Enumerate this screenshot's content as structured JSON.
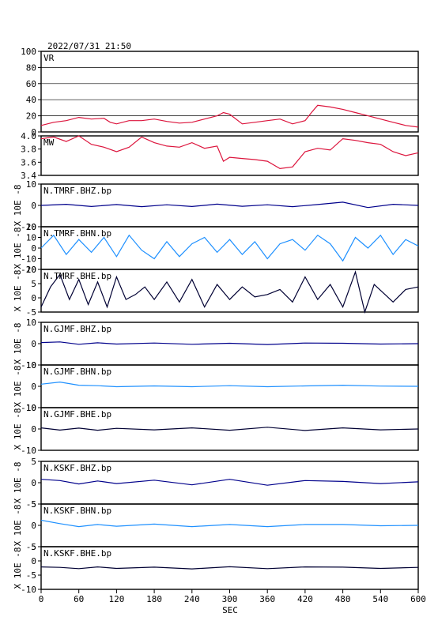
{
  "header": {
    "datetime": "2022/07/31 21:50"
  },
  "xaxis": {
    "label": "SEC",
    "ticks": [
      "0",
      "60",
      "120",
      "180",
      "240",
      "300",
      "360",
      "420",
      "480",
      "540",
      "600"
    ],
    "range": [
      0,
      600
    ]
  },
  "colors": {
    "vr_mw": "#dc143c",
    "bhz": "#00008b",
    "bhn": "#1e90ff",
    "bhe": "#000033"
  },
  "chart_data": [
    {
      "type": "line",
      "id": "vr",
      "label": "VR",
      "ylim": [
        0,
        100
      ],
      "yticks": [
        "100",
        "80",
        "60",
        "40",
        "20",
        "0"
      ],
      "grid": true,
      "x": [
        0,
        20,
        40,
        60,
        80,
        100,
        110,
        120,
        140,
        160,
        180,
        200,
        220,
        240,
        260,
        280,
        290,
        300,
        320,
        340,
        360,
        380,
        400,
        420,
        430,
        440,
        460,
        480,
        500,
        520,
        540,
        560,
        580,
        600
      ],
      "values": [
        8,
        12,
        14,
        18,
        16,
        17,
        12,
        10,
        14,
        14,
        16,
        13,
        11,
        12,
        16,
        20,
        24,
        22,
        10,
        12,
        14,
        16,
        10,
        14,
        24,
        33,
        31,
        28,
        24,
        20,
        16,
        12,
        8,
        6
      ]
    },
    {
      "type": "line",
      "id": "mw",
      "label": "MW",
      "ylim": [
        3.3,
        4.0
      ],
      "yticks": [
        "4.0",
        "3.8",
        "3.6",
        "3.4"
      ],
      "grid": false,
      "x": [
        0,
        20,
        40,
        60,
        80,
        100,
        120,
        140,
        160,
        180,
        200,
        220,
        240,
        260,
        280,
        290,
        300,
        320,
        340,
        360,
        380,
        400,
        420,
        440,
        460,
        480,
        500,
        520,
        540,
        560,
        580,
        600
      ],
      "values": [
        3.95,
        3.98,
        3.9,
        4.0,
        3.85,
        3.8,
        3.72,
        3.8,
        3.98,
        3.88,
        3.82,
        3.8,
        3.88,
        3.78,
        3.82,
        3.55,
        3.62,
        3.6,
        3.58,
        3.55,
        3.42,
        3.45,
        3.72,
        3.78,
        3.75,
        3.95,
        3.92,
        3.88,
        3.85,
        3.72,
        3.65,
        3.7
      ]
    },
    {
      "type": "line",
      "id": "tmrf-bhz",
      "label": "N.TMRF.BHZ.bp",
      "ylim": [
        -10,
        10
      ],
      "yticks": [
        "10",
        "0",
        "-10"
      ],
      "yunit": "X 10E -8",
      "x": [
        0,
        40,
        80,
        120,
        160,
        200,
        240,
        280,
        320,
        360,
        400,
        440,
        480,
        520,
        560,
        600
      ],
      "values": [
        0,
        0.5,
        -0.5,
        0.4,
        -0.6,
        0.3,
        -0.5,
        0.6,
        -0.4,
        0.3,
        -0.6,
        0.4,
        1.5,
        -1,
        0.5,
        0
      ]
    },
    {
      "type": "line",
      "id": "tmrf-bhn",
      "label": "N.TMRF.BHN.bp",
      "ylim": [
        -20,
        20
      ],
      "yticks": [
        "20",
        "10",
        "0",
        "-10",
        "-20"
      ],
      "yunit": "X 10E -8",
      "x": [
        0,
        20,
        40,
        60,
        80,
        100,
        120,
        140,
        160,
        180,
        200,
        220,
        240,
        260,
        280,
        300,
        320,
        340,
        360,
        380,
        400,
        420,
        440,
        460,
        480,
        500,
        520,
        540,
        560,
        580,
        600
      ],
      "values": [
        0,
        12,
        -6,
        8,
        -4,
        10,
        -8,
        12,
        -2,
        -10,
        6,
        -8,
        4,
        10,
        -4,
        8,
        -6,
        6,
        -10,
        4,
        8,
        -2,
        12,
        4,
        -12,
        10,
        0,
        12,
        -6,
        8,
        2
      ]
    },
    {
      "type": "line",
      "id": "tmrf-bhe",
      "label": "N.TMRF.BHE.bp",
      "ylim": [
        -7,
        10
      ],
      "yticks": [
        "10",
        "5",
        "0",
        "-5"
      ],
      "yunit": "X 10E -8",
      "x": [
        0,
        15,
        30,
        45,
        60,
        75,
        90,
        105,
        120,
        135,
        150,
        165,
        180,
        200,
        220,
        240,
        260,
        280,
        300,
        320,
        340,
        360,
        380,
        400,
        420,
        440,
        460,
        480,
        500,
        515,
        530,
        560,
        580,
        600
      ],
      "values": [
        -5,
        3,
        8,
        -2,
        6,
        -4,
        5,
        -5,
        7,
        -2,
        0,
        3,
        -2,
        5,
        -3,
        6,
        -5,
        4,
        -2,
        3,
        -1,
        0,
        2,
        -3,
        7,
        -2,
        4,
        -5,
        9,
        -7,
        4,
        -3,
        2,
        3
      ]
    },
    {
      "type": "line",
      "id": "gjmf-bhz",
      "label": "N.GJMF.BHZ.bp",
      "ylim": [
        -10,
        10
      ],
      "yticks": [
        "10",
        "0",
        "-10"
      ],
      "yunit": "X 10E -8",
      "x": [
        0,
        30,
        60,
        90,
        120,
        180,
        240,
        300,
        360,
        420,
        480,
        540,
        600
      ],
      "values": [
        0.5,
        0.8,
        -0.3,
        0.4,
        -0.2,
        0.3,
        -0.3,
        0.2,
        -0.4,
        0.3,
        0.2,
        -0.2,
        0
      ]
    },
    {
      "type": "line",
      "id": "gjmf-bhn",
      "label": "N.GJMF.BHN.bp",
      "ylim": [
        -10,
        10
      ],
      "yticks": [
        "10",
        "0",
        "-10"
      ],
      "yunit": "X 10E -8",
      "x": [
        0,
        30,
        60,
        90,
        120,
        180,
        240,
        300,
        360,
        420,
        480,
        540,
        600
      ],
      "values": [
        1,
        2,
        0.5,
        0.3,
        -0.2,
        0.2,
        -0.2,
        0.3,
        -0.2,
        0.2,
        0.5,
        0.1,
        0
      ]
    },
    {
      "type": "line",
      "id": "gjmf-bhe",
      "label": "N.GJMF.BHE.bp",
      "ylim": [
        -10,
        10
      ],
      "yticks": [
        "10",
        "0",
        "-10"
      ],
      "yunit": "X 10E -8",
      "x": [
        0,
        30,
        60,
        90,
        120,
        180,
        240,
        300,
        360,
        420,
        480,
        540,
        600
      ],
      "values": [
        0.5,
        -0.5,
        0.4,
        -0.6,
        0.3,
        -0.4,
        0.5,
        -0.6,
        0.8,
        -0.7,
        0.5,
        -0.4,
        0
      ]
    },
    {
      "type": "line",
      "id": "kskf-bhz",
      "label": "N.KSKF.BHZ.bp",
      "ylim": [
        -5,
        5
      ],
      "yticks": [
        "5",
        "0",
        "-5"
      ],
      "yunit": "X 10E -8",
      "x": [
        0,
        30,
        60,
        90,
        120,
        180,
        240,
        300,
        360,
        420,
        480,
        540,
        600
      ],
      "values": [
        0.8,
        0.5,
        -0.3,
        0.4,
        -0.2,
        0.6,
        -0.5,
        0.8,
        -0.6,
        0.5,
        0.3,
        -0.2,
        0.2
      ]
    },
    {
      "type": "line",
      "id": "kskf-bhn",
      "label": "N.KSKF.BHN.bp",
      "ylim": [
        -5,
        5
      ],
      "yticks": [
        "5",
        "0",
        "-5"
      ],
      "yunit": "X 10E -8",
      "x": [
        0,
        30,
        60,
        90,
        120,
        180,
        240,
        300,
        360,
        420,
        480,
        540,
        600
      ],
      "values": [
        1.2,
        0.4,
        -0.3,
        0.2,
        -0.2,
        0.3,
        -0.3,
        0.2,
        -0.3,
        0.2,
        0.2,
        -0.1,
        0
      ]
    },
    {
      "type": "line",
      "id": "kskf-bhe",
      "label": "N.KSKF.BHE.bp",
      "ylim": [
        -10,
        10
      ],
      "yticks": [
        "5",
        "0",
        "-5",
        "-10"
      ],
      "yunit": "X 10E -8",
      "x": [
        0,
        30,
        60,
        90,
        120,
        180,
        240,
        300,
        360,
        420,
        480,
        540,
        600
      ],
      "values": [
        0.5,
        0.3,
        -0.3,
        0.5,
        -0.2,
        0.4,
        -0.4,
        0.6,
        -0.3,
        0.5,
        0.4,
        -0.2,
        0.3
      ]
    }
  ]
}
